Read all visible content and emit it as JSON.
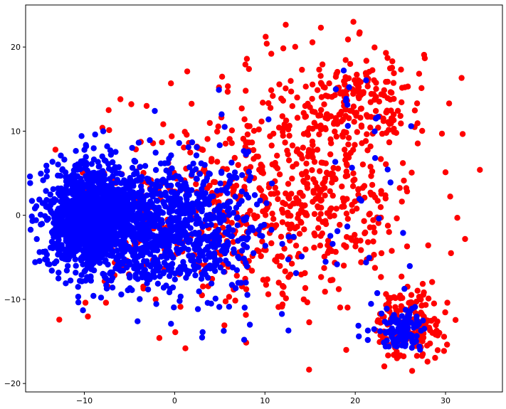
{
  "chart_data": {
    "type": "scatter",
    "title": "",
    "xlabel": "",
    "ylabel": "",
    "xlim": [
      -16.5,
      36.3
    ],
    "ylim": [
      -21.0,
      25.0
    ],
    "xticks": [
      -10,
      0,
      10,
      20,
      30
    ],
    "yticks": [
      -20,
      -10,
      0,
      10,
      20
    ],
    "xtick_labels": [
      "−10",
      "0",
      "10",
      "20",
      "30"
    ],
    "ytick_labels": [
      "−20",
      "−10",
      "0",
      "10",
      "20"
    ],
    "grid": false,
    "legend": "none",
    "series": [
      {
        "color": "#ff0000",
        "clusters": [
          {
            "cx": 20.5,
            "cy": 14.0,
            "sx": 3.5,
            "sy": 3.0,
            "n": 170
          },
          {
            "cx": 16.0,
            "cy": 3.0,
            "sx": 5.5,
            "sy": 6.5,
            "n": 420
          },
          {
            "cx": 26.0,
            "cy": -13.0,
            "sx": 1.8,
            "sy": 2.0,
            "n": 170
          },
          {
            "cx": 6.0,
            "cy": 1.0,
            "sx": 5.0,
            "sy": 6.0,
            "n": 230
          },
          {
            "cx": -4.0,
            "cy": -1.0,
            "sx": 4.0,
            "sy": 5.0,
            "n": 90
          }
        ],
        "points": [
          {
            "x": 19.8,
            "y": 23.0
          },
          {
            "x": 16.2,
            "y": 22.3
          },
          {
            "x": 33.8,
            "y": 5.4
          },
          {
            "x": 30.4,
            "y": 13.3
          },
          {
            "x": 26.3,
            "y": -18.5
          },
          {
            "x": 28.0,
            "y": -17.4
          },
          {
            "x": -13.2,
            "y": 7.8
          },
          {
            "x": -10.3,
            "y": 2.4
          },
          {
            "x": -7.0,
            "y": 1.3
          },
          {
            "x": -8.0,
            "y": 10.4
          },
          {
            "x": -7.3,
            "y": 12.5
          },
          {
            "x": -6.0,
            "y": 13.8
          },
          {
            "x": -4.8,
            "y": 13.2
          },
          {
            "x": -3.1,
            "y": 13.0
          },
          {
            "x": 10.2,
            "y": 20.4
          },
          {
            "x": 10.7,
            "y": 19.2
          },
          {
            "x": 8.0,
            "y": 18.6
          },
          {
            "x": 14.1,
            "y": 17.3
          },
          {
            "x": 19.2,
            "y": 20.9
          },
          {
            "x": 23.4,
            "y": 19.3
          },
          {
            "x": 29.6,
            "y": 9.7
          },
          {
            "x": 31.3,
            "y": -0.3
          },
          {
            "x": 30.6,
            "y": -4.5
          },
          {
            "x": 30.2,
            "y": -10.4
          },
          {
            "x": 1.4,
            "y": 17.1
          },
          {
            "x": -2.1,
            "y": -10.0
          },
          {
            "x": -7.6,
            "y": -10.4
          },
          {
            "x": 19.0,
            "y": -16.0
          },
          {
            "x": 11.5,
            "y": -10.9
          },
          {
            "x": 14.3,
            "y": -10.0
          }
        ]
      },
      {
        "color": "#0000ff",
        "clusters": [
          {
            "cx": -9.5,
            "cy": -0.3,
            "sx": 2.4,
            "sy": 3.1,
            "n": 1100
          },
          {
            "cx": -4.5,
            "cy": -1.0,
            "sx": 3.4,
            "sy": 3.5,
            "n": 650
          },
          {
            "cx": 1.5,
            "cy": -1.5,
            "sx": 3.2,
            "sy": 4.0,
            "n": 330
          },
          {
            "cx": 5.5,
            "cy": -2.0,
            "sx": 3.0,
            "sy": 4.5,
            "n": 120
          },
          {
            "cx": 25.2,
            "cy": -13.8,
            "sx": 1.3,
            "sy": 1.1,
            "n": 110
          },
          {
            "cx": 20.0,
            "cy": 14.5,
            "sx": 1.8,
            "sy": 1.8,
            "n": 10
          },
          {
            "cx": 22.0,
            "cy": -2.0,
            "sx": 4.0,
            "sy": 7.0,
            "n": 22
          }
        ],
        "points": [
          {
            "x": -14.2,
            "y": 5.9
          },
          {
            "x": -14.0,
            "y": -0.4
          },
          {
            "x": -13.3,
            "y": -5.7
          },
          {
            "x": -12.6,
            "y": 7.1
          },
          {
            "x": -10.5,
            "y": -7.8
          },
          {
            "x": -9.8,
            "y": 8.2
          },
          {
            "x": -8.8,
            "y": 9.6
          },
          {
            "x": -4.1,
            "y": -12.6
          },
          {
            "x": -0.4,
            "y": -12.9
          },
          {
            "x": 3.1,
            "y": -13.9
          },
          {
            "x": 4.9,
            "y": 14.9
          },
          {
            "x": 5.2,
            "y": 12.0
          },
          {
            "x": 10.4,
            "y": 11.4
          },
          {
            "x": 12.6,
            "y": -13.7
          },
          {
            "x": 20.4,
            "y": -14.4
          },
          {
            "x": 21.4,
            "y": -13.7
          },
          {
            "x": 27.1,
            "y": -15.6
          },
          {
            "x": 21.2,
            "y": -5.6
          },
          {
            "x": 23.9,
            "y": 3.9
          },
          {
            "x": 22.2,
            "y": 6.8
          },
          {
            "x": 25.3,
            "y": -2.1
          },
          {
            "x": 17.5,
            "y": -3.4
          },
          {
            "x": 7.7,
            "y": -14.8
          },
          {
            "x": -2.2,
            "y": 12.4
          }
        ]
      }
    ]
  }
}
